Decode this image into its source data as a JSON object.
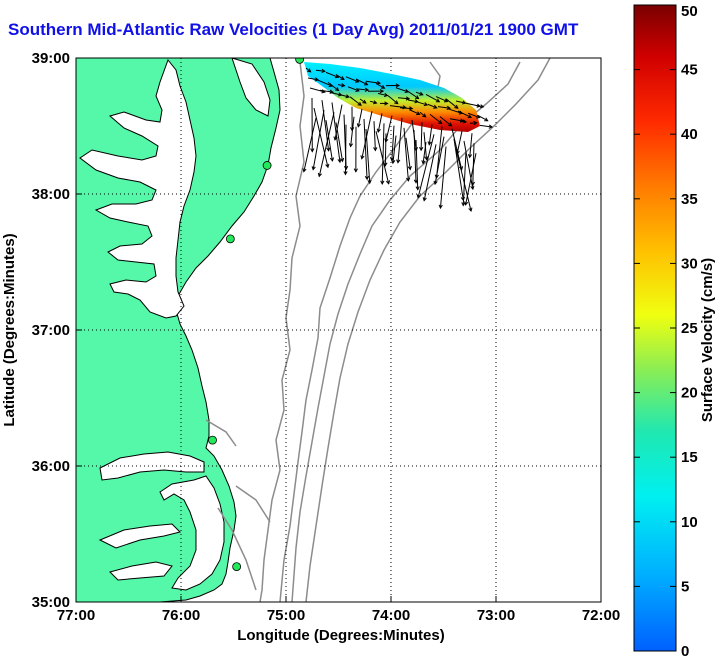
{
  "title": "Southern Mid-Atlantic Raw Velocities (1 Day Avg) 2011/01/21 1900 GMT",
  "map": {
    "x_label": "Longitude (Degrees:Minutes)",
    "y_label": "Latitude (Degrees:Minutes)",
    "lon_range": [
      -77,
      -72
    ],
    "lat_range": [
      35,
      39
    ],
    "x_ticks": [
      {
        "value": -77,
        "label": "77:00"
      },
      {
        "value": -76,
        "label": "76:00"
      },
      {
        "value": -75,
        "label": "75:00"
      },
      {
        "value": -74,
        "label": "74:00"
      },
      {
        "value": -73,
        "label": "73:00"
      },
      {
        "value": -72,
        "label": "72:00"
      }
    ],
    "y_ticks": [
      {
        "value": 39,
        "label": "39:00"
      },
      {
        "value": 38,
        "label": "38:00"
      },
      {
        "value": 37,
        "label": "37:00"
      },
      {
        "value": 36,
        "label": "36:00"
      },
      {
        "value": 35,
        "label": "35:00"
      }
    ],
    "grid": "dotted",
    "land_color": "#55f7a8",
    "isobath_color": "#8c8c8c",
    "stations": [
      {
        "lon": -74.87,
        "lat": 38.99
      },
      {
        "lon": -75.18,
        "lat": 38.21
      },
      {
        "lon": -75.53,
        "lat": 37.67
      },
      {
        "lon": -75.7,
        "lat": 36.19
      },
      {
        "lon": -75.47,
        "lat": 35.26
      }
    ]
  },
  "colorbar": {
    "label": "Surface Velocity (cm/s)",
    "min": 0,
    "max": 50,
    "ticks": [
      {
        "value": 0,
        "label": "0"
      },
      {
        "value": 5,
        "label": "5"
      },
      {
        "value": 10,
        "label": "10"
      },
      {
        "value": 15,
        "label": "15"
      },
      {
        "value": 20,
        "label": "20"
      },
      {
        "value": 25,
        "label": "25"
      },
      {
        "value": 30,
        "label": "30"
      },
      {
        "value": 35,
        "label": "35"
      },
      {
        "value": 40,
        "label": "40"
      },
      {
        "value": 45,
        "label": "45"
      },
      {
        "value": 50,
        "label": "50"
      }
    ]
  }
}
